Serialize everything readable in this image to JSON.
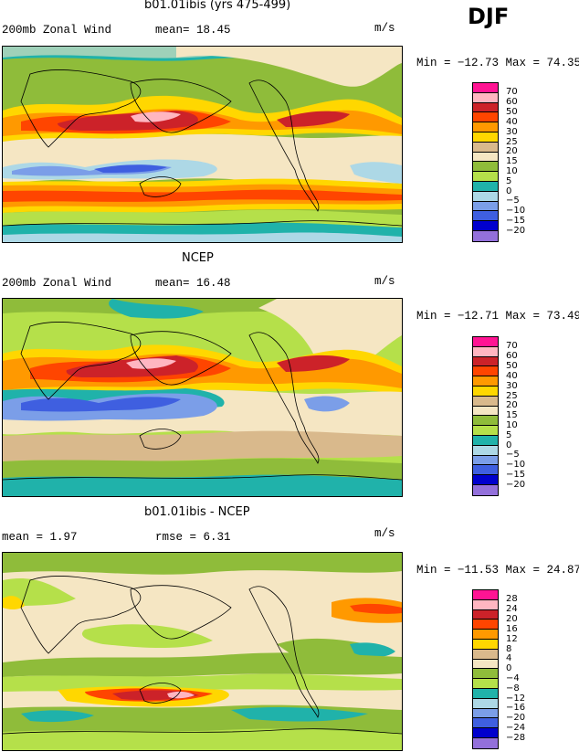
{
  "season": "DJF",
  "panels": [
    {
      "title": "b01.01ibis (yrs 475-499)",
      "left_stat": "200mb Zonal Wind",
      "mid_stat": "mean=  18.45",
      "units": "m/s",
      "minmax": "Min = −12.73 Max =  74.35",
      "labels": [
        "70",
        "60",
        "50",
        "40",
        "30",
        "25",
        "20",
        "15",
        "10",
        "5",
        "0",
        "−5",
        "−10",
        "−15",
        "−20"
      ]
    },
    {
      "title": "NCEP",
      "left_stat": "200mb Zonal Wind",
      "mid_stat": "mean=  16.48",
      "units": "m/s",
      "minmax": "Min = −12.71 Max =  73.49",
      "labels": [
        "70",
        "60",
        "50",
        "40",
        "30",
        "25",
        "20",
        "15",
        "10",
        "5",
        "0",
        "−5",
        "−10",
        "−15",
        "−20"
      ]
    },
    {
      "title": "b01.01ibis - NCEP",
      "left_stat": "mean =   1.97",
      "mid_stat": "rmse =   6.31",
      "units": "m/s",
      "minmax": "Min = −11.53 Max =  24.87",
      "labels": [
        "28",
        "24",
        "20",
        "16",
        "12",
        "8",
        "4",
        "0",
        "−4",
        "−8",
        "−12",
        "−16",
        "−20",
        "−24",
        "−28"
      ]
    }
  ],
  "colors": {
    "wind": [
      "#ff1493",
      "#ffb6c1",
      "#cc2229",
      "#ff4500",
      "#ff9900",
      "#ffd700",
      "#d9b98c",
      "#f5e6c3",
      "#8fbc3a",
      "#b5e04a",
      "#20b2aa",
      "#add8e6",
      "#7b9ee8",
      "#3f5fe0",
      "#0000cd",
      "#9370db"
    ],
    "diff": [
      "#ff1493",
      "#ffb6c1",
      "#cc2229",
      "#ff4500",
      "#ff9900",
      "#ffd700",
      "#d9b98c",
      "#f5e6c3",
      "#8fbc3a",
      "#b5e04a",
      "#20b2aa",
      "#add8e6",
      "#7b9ee8",
      "#3f5fe0",
      "#0000cd",
      "#9370db"
    ]
  }
}
